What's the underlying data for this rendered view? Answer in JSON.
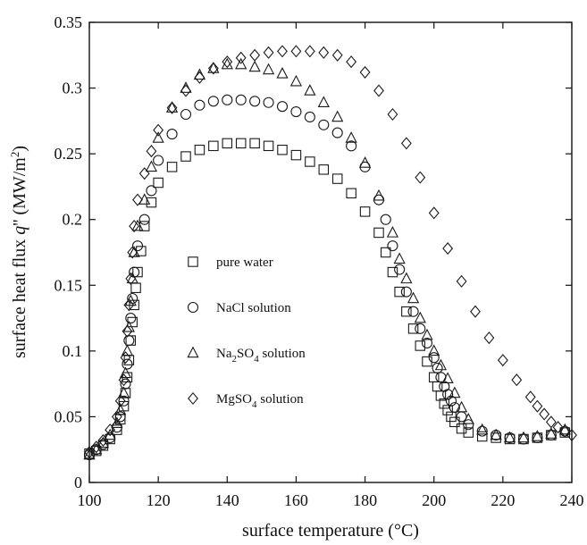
{
  "chart_data": {
    "type": "scatter",
    "xlabel": "surface temperature (°C)",
    "ylabel_parts": {
      "main": "surface heat flux ",
      "q": "q",
      "unit": "'' (MW/m",
      "sup": "2",
      "close": ")"
    },
    "xlim": [
      100,
      240
    ],
    "ylim": [
      0,
      0.35
    ],
    "x_ticks": [
      100,
      120,
      140,
      160,
      180,
      200,
      220,
      240
    ],
    "y_ticks": [
      0,
      0.05,
      0.1,
      0.15,
      0.2,
      0.25,
      0.3,
      0.35
    ],
    "y_tick_labels": [
      "0",
      "0.05",
      "0.1",
      "0.15",
      "0.2",
      "0.25",
      "0.3",
      "0.35"
    ],
    "legend_position": "center-left",
    "series": [
      {
        "name": "pure water",
        "label_main": "pure water",
        "label_sub": "",
        "label_tail": "",
        "marker": "square",
        "x": [
          100,
          102,
          104,
          106,
          108,
          109,
          110,
          110.5,
          111,
          111.5,
          112,
          112.5,
          113,
          113.5,
          114,
          115,
          116,
          118,
          120,
          124,
          128,
          132,
          136,
          140,
          144,
          148,
          152,
          156,
          160,
          164,
          168,
          172,
          176,
          180,
          184,
          186,
          188,
          190,
          192,
          194,
          196,
          198,
          200,
          201,
          202,
          203,
          204,
          205,
          206,
          208,
          210,
          214,
          218,
          222,
          226,
          230,
          234,
          238
        ],
        "y": [
          0.022,
          0.024,
          0.028,
          0.033,
          0.04,
          0.048,
          0.058,
          0.068,
          0.08,
          0.093,
          0.108,
          0.122,
          0.135,
          0.148,
          0.16,
          0.176,
          0.195,
          0.213,
          0.228,
          0.24,
          0.248,
          0.253,
          0.256,
          0.258,
          0.258,
          0.258,
          0.256,
          0.253,
          0.249,
          0.244,
          0.238,
          0.231,
          0.22,
          0.206,
          0.19,
          0.175,
          0.16,
          0.145,
          0.13,
          0.117,
          0.104,
          0.092,
          0.08,
          0.073,
          0.066,
          0.06,
          0.055,
          0.05,
          0.046,
          0.041,
          0.038,
          0.035,
          0.034,
          0.033,
          0.033,
          0.034,
          0.036,
          0.038
        ]
      },
      {
        "name": "NaCl solution",
        "label_main": "NaCl solution",
        "label_sub": "",
        "label_tail": "",
        "marker": "circle",
        "x": [
          100,
          102,
          104,
          106,
          108,
          109,
          110,
          110.5,
          111,
          111.5,
          112,
          112.5,
          113,
          114,
          116,
          118,
          120,
          124,
          128,
          132,
          136,
          140,
          144,
          148,
          152,
          156,
          160,
          164,
          168,
          172,
          176,
          180,
          184,
          186,
          188,
          190,
          192,
          194,
          196,
          198,
          200,
          201,
          202,
          203,
          204,
          205,
          206,
          208,
          210,
          214,
          218,
          222,
          226,
          230,
          234,
          238
        ],
        "y": [
          0.021,
          0.025,
          0.029,
          0.034,
          0.042,
          0.05,
          0.062,
          0.075,
          0.09,
          0.108,
          0.125,
          0.14,
          0.16,
          0.18,
          0.2,
          0.222,
          0.245,
          0.265,
          0.28,
          0.287,
          0.29,
          0.291,
          0.291,
          0.29,
          0.289,
          0.286,
          0.282,
          0.278,
          0.272,
          0.266,
          0.256,
          0.24,
          0.215,
          0.2,
          0.18,
          0.162,
          0.145,
          0.13,
          0.117,
          0.106,
          0.095,
          0.087,
          0.08,
          0.073,
          0.067,
          0.062,
          0.057,
          0.05,
          0.044,
          0.039,
          0.036,
          0.034,
          0.033,
          0.034,
          0.036,
          0.039
        ]
      },
      {
        "name": "Na2SO4 solution",
        "label_main": "Na",
        "label_sub": "2",
        "label_tail": "SO",
        "label_sub2": "4",
        "label_end": " solution",
        "marker": "triangle",
        "x": [
          100,
          102,
          104,
          106,
          108,
          109,
          110,
          110.5,
          111,
          111.5,
          112,
          112.5,
          113,
          114,
          116,
          118,
          120,
          124,
          128,
          132,
          136,
          140,
          144,
          148,
          152,
          156,
          160,
          164,
          168,
          172,
          176,
          180,
          184,
          188,
          190,
          192,
          194,
          196,
          198,
          200,
          202,
          204,
          206,
          208,
          210,
          214,
          218,
          222,
          226,
          230,
          234,
          238
        ],
        "y": [
          0.021,
          0.025,
          0.03,
          0.036,
          0.045,
          0.055,
          0.068,
          0.083,
          0.1,
          0.118,
          0.138,
          0.155,
          0.175,
          0.195,
          0.215,
          0.24,
          0.262,
          0.285,
          0.3,
          0.31,
          0.315,
          0.318,
          0.318,
          0.316,
          0.314,
          0.311,
          0.305,
          0.298,
          0.289,
          0.278,
          0.262,
          0.243,
          0.218,
          0.19,
          0.17,
          0.155,
          0.14,
          0.125,
          0.112,
          0.1,
          0.089,
          0.079,
          0.068,
          0.057,
          0.048,
          0.04,
          0.036,
          0.034,
          0.034,
          0.035,
          0.037,
          0.04
        ]
      },
      {
        "name": "MgSO4 solution",
        "label_main": "MgSO",
        "label_sub": "4",
        "label_tail": " solution",
        "marker": "diamond",
        "x": [
          100,
          102,
          104,
          106,
          108,
          109,
          110,
          110.5,
          111,
          111.5,
          112,
          112.5,
          113,
          114,
          116,
          118,
          120,
          124,
          128,
          132,
          136,
          140,
          144,
          148,
          152,
          156,
          160,
          164,
          168,
          172,
          176,
          180,
          184,
          188,
          192,
          196,
          200,
          204,
          208,
          212,
          216,
          220,
          224,
          228,
          230,
          232,
          234,
          236,
          238,
          240
        ],
        "y": [
          0.023,
          0.027,
          0.032,
          0.04,
          0.05,
          0.062,
          0.078,
          0.095,
          0.115,
          0.135,
          0.155,
          0.175,
          0.195,
          0.215,
          0.235,
          0.252,
          0.268,
          0.285,
          0.298,
          0.308,
          0.315,
          0.32,
          0.323,
          0.325,
          0.327,
          0.328,
          0.328,
          0.328,
          0.327,
          0.325,
          0.32,
          0.312,
          0.298,
          0.28,
          0.258,
          0.232,
          0.205,
          0.178,
          0.153,
          0.13,
          0.11,
          0.093,
          0.078,
          0.065,
          0.058,
          0.052,
          0.046,
          0.042,
          0.039,
          0.036
        ]
      }
    ]
  }
}
